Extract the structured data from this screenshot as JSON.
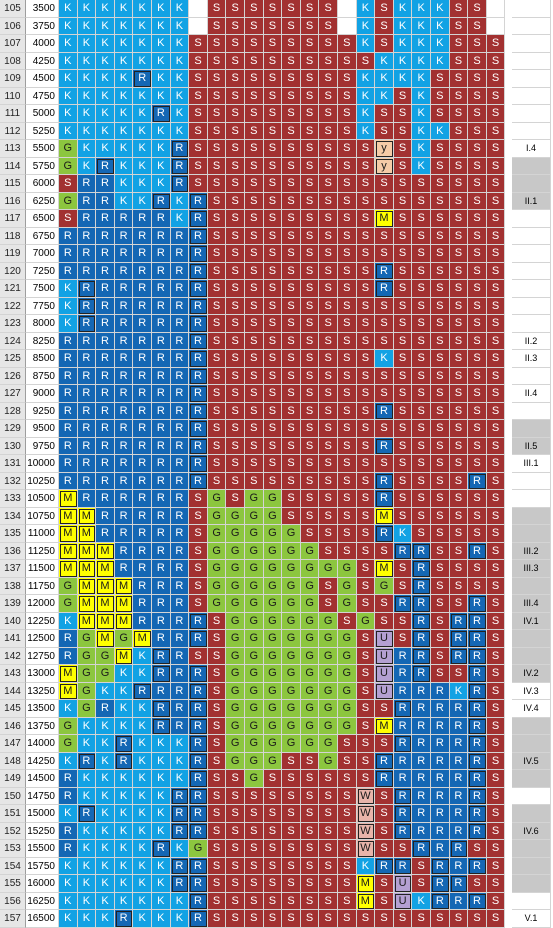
{
  "palette": {
    "K": "#12a2e4",
    "R": "#1467b4",
    "S": "#a23131",
    "G": "#8cc63f",
    "M": "#ffff00",
    "U": "#b4a0d2",
    "W": "#e8b4aa",
    "y": "#f5cba7",
    "_": "#ffffff"
  },
  "rows": [
    {
      "n": "105",
      "v": "3500",
      "c": "KKKKKKK_SSSSSSS_KSKKKSS_",
      "lab": ""
    },
    {
      "n": "106",
      "v": "3750",
      "c": "KKKKKKK_SSSSSSS_KSKKKSS_",
      "lab": ""
    },
    {
      "n": "107",
      "v": "4000",
      "c": "KKKKKKKSSSSSSSSSKSKKKSSS",
      "lab": ""
    },
    {
      "n": "108",
      "v": "4250",
      "c": "KKKKKKKSSSSSSSSSSKKKKSSS",
      "lab": ""
    },
    {
      "n": "109",
      "v": "4500",
      "c": "KKKKRKKSSSSSSSSSKKKKSSSS",
      "lab": ""
    },
    {
      "n": "110",
      "v": "4750",
      "c": "KKKKKKKSSSSSSSSSKKSKSSSS",
      "lab": ""
    },
    {
      "n": "111",
      "v": "5000",
      "c": "KKKKKRKSSSSSSSSSKSSKSSSS",
      "lab": ""
    },
    {
      "n": "112",
      "v": "5250",
      "c": "KKKKKKKSSSSSSSSSKSSKKSSS",
      "lab": ""
    },
    {
      "n": "113",
      "v": "5500",
      "c": "GKKKKKRSSSSSSSSSSySKSSSS",
      "lab": "I.4"
    },
    {
      "n": "114",
      "v": "5750",
      "c": "GKRKKKRSSSSSSSSSSySKSSSS",
      "lab": ""
    },
    {
      "n": "115",
      "v": "6000",
      "c": "SRRKKKRSSSSSSSSSSSSSSSSS",
      "lab": ""
    },
    {
      "n": "116",
      "v": "6250",
      "c": "GRRKKRKRSSSSSSSSSSSSSSSS",
      "lab": "II.1"
    },
    {
      "n": "117",
      "v": "6500",
      "c": "SRRRRRKRSSSSSSSSSMSSSSSS",
      "lab": ""
    },
    {
      "n": "118",
      "v": "6750",
      "c": "RRRRRRRRSSSSSSSSSSSSSSSS",
      "lab": ""
    },
    {
      "n": "119",
      "v": "7000",
      "c": "RRRRRRRRSSSSSSSSSSSSSSSS",
      "lab": ""
    },
    {
      "n": "120",
      "v": "7250",
      "c": "RRRRRRRRSSSSSSSSSRSSSSSS",
      "lab": ""
    },
    {
      "n": "121",
      "v": "7500",
      "c": "KRRRRRRRSSSSSSSSSRSSSSSS",
      "lab": ""
    },
    {
      "n": "122",
      "v": "7750",
      "c": "KRRRRRRRSSSSSSSSSSSSSSSS",
      "lab": ""
    },
    {
      "n": "123",
      "v": "8000",
      "c": "KRRRRRRRSSSSSSSSSSSSSSSS",
      "lab": ""
    },
    {
      "n": "124",
      "v": "8250",
      "c": "RRRRRRRRSSSSSSSSSSSSSSSS",
      "lab": "II.2"
    },
    {
      "n": "125",
      "v": "8500",
      "c": "RRRRRRRRSSSSSSSSSKSSSSSS",
      "lab": "II.3"
    },
    {
      "n": "126",
      "v": "8750",
      "c": "RRRRRRRRSSSSSSSSSSSSSSSS",
      "lab": ""
    },
    {
      "n": "127",
      "v": "9000",
      "c": "RRRRRRRRSSSSSSSSSSSSSSSS",
      "lab": "II.4"
    },
    {
      "n": "128",
      "v": "9250",
      "c": "RRRRRRRRSSSSSSSSSRSSSSSS",
      "lab": ""
    },
    {
      "n": "129",
      "v": "9500",
      "c": "RRRRRRRRSSSSSSSSSSSSSSSS",
      "lab": ""
    },
    {
      "n": "130",
      "v": "9750",
      "c": "RRRRRRRRSSSSSSSSSRSSSSSS",
      "lab": "II.5"
    },
    {
      "n": "131",
      "v": "10000",
      "c": "RRRRRRRRSSSSSSSSSSSSSSSS",
      "lab": "III.1"
    },
    {
      "n": "132",
      "v": "10250",
      "c": "RRRRRRRRSSSSSSSSSRSSSSRS",
      "lab": ""
    },
    {
      "n": "133",
      "v": "10500",
      "c": "MRRRRRRSGSGGSSSSSRSSSSSS",
      "lab": ""
    },
    {
      "n": "134",
      "v": "10750",
      "c": "MMRRRRRSGGGGSSSSSMSSSSSS",
      "lab": ""
    },
    {
      "n": "135",
      "v": "11000",
      "c": "MMRRRRRSGGGGGSSSSRKSSSSS",
      "lab": ""
    },
    {
      "n": "136",
      "v": "11250",
      "c": "MMMRRRRSGGGGGGSSSSRRSSRS",
      "lab": "III.2"
    },
    {
      "n": "137",
      "v": "11500",
      "c": "MMMRRRRSGGGGGGGGSMSRSSSS",
      "lab": "III.3"
    },
    {
      "n": "138",
      "v": "11750",
      "c": "GMMMRRRSGGGGGGSGSGSRSSSS",
      "lab": ""
    },
    {
      "n": "139",
      "v": "12000",
      "c": "GMMMRRRSGGGGGGSGSSRRSSRS",
      "lab": "III.4"
    },
    {
      "n": "140",
      "v": "12250",
      "c": "KMMMRRRRSGGGGGGSGSSRSRRS",
      "lab": "IV.1"
    },
    {
      "n": "141",
      "v": "12500",
      "c": "RGMGMRRRSGGGGGGGSUSRSRRS",
      "lab": ""
    },
    {
      "n": "142",
      "v": "12750",
      "c": "RGGMKRRSSGGGGGGGSURRSRRS",
      "lab": ""
    },
    {
      "n": "143",
      "v": "13000",
      "c": "MGGKKRRRSGGGGGGGSURRSSRS",
      "lab": "IV.2"
    },
    {
      "n": "144",
      "v": "13250",
      "c": "MGKKRRRRSGGGGGGGSURRRKRS",
      "lab": "IV.3"
    },
    {
      "n": "145",
      "v": "13500",
      "c": "KGRKKRRRSGGGGGGGSSRRRRRS",
      "lab": "IV.4"
    },
    {
      "n": "146",
      "v": "13750",
      "c": "GKKKKRRRSGGGGGGGSMRRRRRS",
      "lab": ""
    },
    {
      "n": "147",
      "v": "14000",
      "c": "GKKRKKKRSGGGGGGSSSRRRRRS",
      "lab": ""
    },
    {
      "n": "148",
      "v": "14250",
      "c": "KRKRKKKRSGGGSSGSSRRRRRRS",
      "lab": "IV.5"
    },
    {
      "n": "149",
      "v": "14500",
      "c": "RKKKKKKRSSGSSSSSSRRRRRRS",
      "lab": ""
    },
    {
      "n": "150",
      "v": "14750",
      "c": "RKKKKKRRSSSSSSSSWSRRRRRS",
      "lab": ""
    },
    {
      "n": "151",
      "v": "15000",
      "c": "KRKKKKRRSSSSSSSSWSRRRRRS",
      "lab": ""
    },
    {
      "n": "152",
      "v": "15250",
      "c": "RKKKKKRRSSSSSSSSWSRRRRRS",
      "lab": "IV.6"
    },
    {
      "n": "153",
      "v": "15500",
      "c": "RKKKKRKGSSSSSSSSWSSRRRSS",
      "lab": ""
    },
    {
      "n": "154",
      "v": "15750",
      "c": "KKKKKKRRSSSSSSSSKRRSRRRS",
      "lab": ""
    },
    {
      "n": "155",
      "v": "16000",
      "c": "KKKKKKRRSSSSSSSSMSUSRRSS",
      "lab": ""
    },
    {
      "n": "156",
      "v": "16250",
      "c": "KKKKKKKRSSSSSSSSMSUKRRRS",
      "lab": ""
    },
    {
      "n": "157",
      "v": "16500",
      "c": "KKKRKKKRSSSSSSSSSSSSSSSS",
      "lab": "V.1"
    }
  ]
}
